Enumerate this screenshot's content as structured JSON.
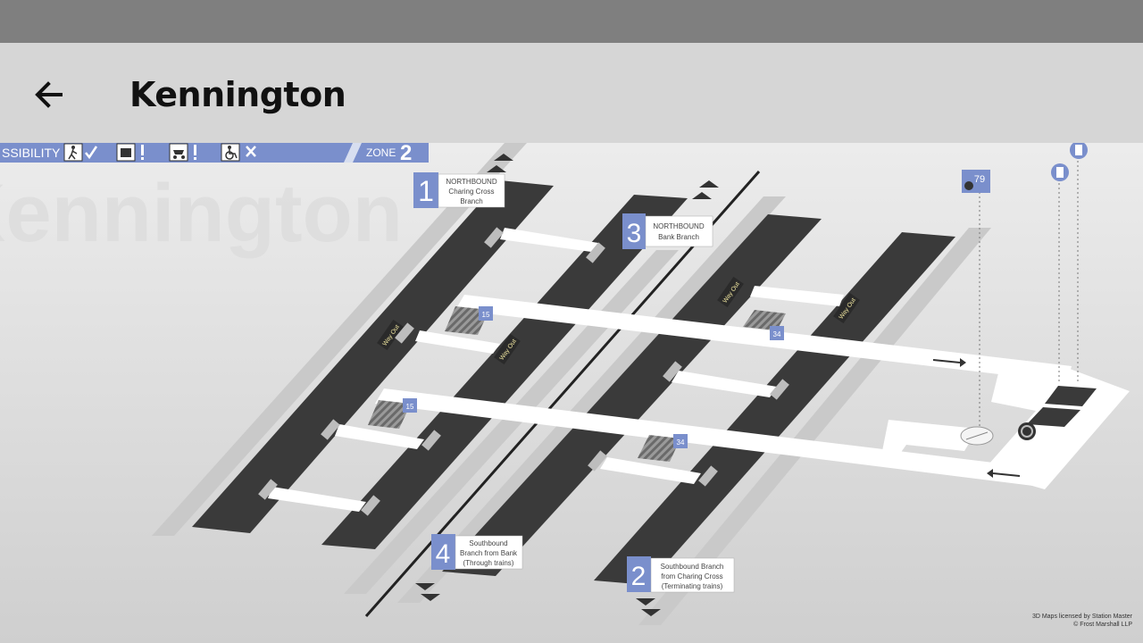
{
  "app_bar": {
    "title": "Kennington",
    "back_icon": "arrow-back-icon"
  },
  "map": {
    "watermark": "Kennington",
    "accessibility_bar": {
      "label": "SSIBILITY",
      "zone_label": "ZONE",
      "zone_number": "2",
      "icons": [
        "walking-person-check-icon",
        "luggage-warning-icon",
        "pushchair-warning-icon",
        "wheelchair-cross-icon"
      ]
    },
    "platforms": [
      {
        "number": "1",
        "lines": [
          "NORTHBOUND",
          "Charing Cross",
          "Branch"
        ]
      },
      {
        "number": "3",
        "lines": [
          "NORTHBOUND",
          "Bank Branch"
        ]
      },
      {
        "number": "4",
        "lines": [
          "Southbound",
          "Branch from Bank",
          "(Through trains)"
        ]
      },
      {
        "number": "2",
        "lines": [
          "Southbound Branch",
          "from Charing Cross",
          "(Terminating trains)"
        ]
      }
    ],
    "stair_badges": [
      "15",
      "34",
      "15",
      "34"
    ],
    "lift_badge": "79",
    "way_out_label": "Way Out",
    "credits": [
      "3D Maps licensed by Station Master",
      "© Frost Marshall LLP"
    ],
    "colors": {
      "accent": "#7a8fcc",
      "platform": "#3a3a3a",
      "track": "#c8c8c8"
    }
  }
}
